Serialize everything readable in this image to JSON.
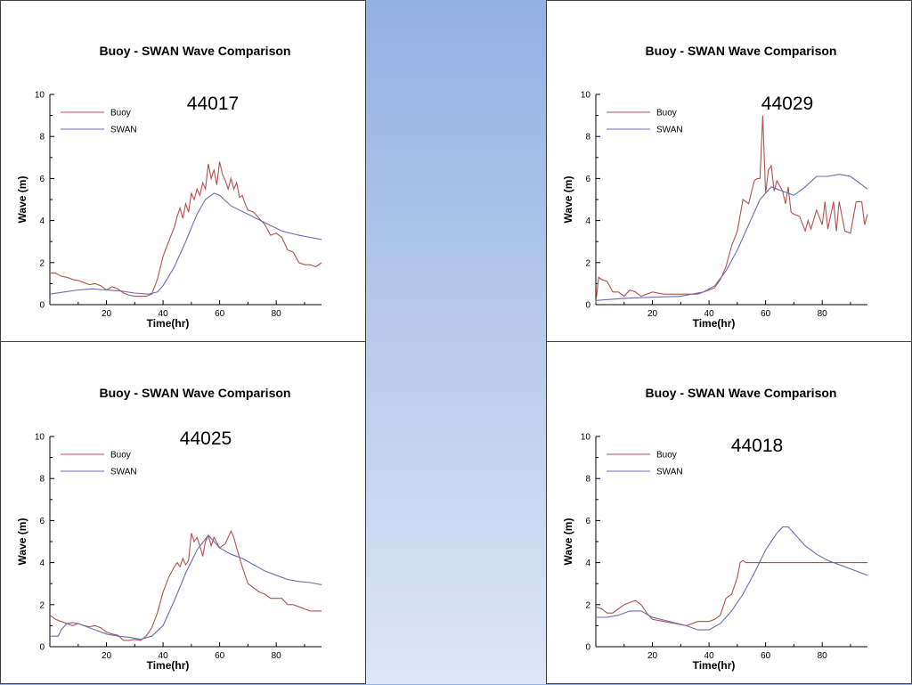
{
  "colors": {
    "buoy": "#b5514d",
    "swan": "#6b6bb5"
  },
  "chart_data": [
    {
      "type": "line",
      "title": "Buoy - SWAN Wave Comparison",
      "station": "44017",
      "xlabel": "Time(hr)",
      "ylabel": "Wave (m)",
      "xlim": [
        0,
        96
      ],
      "ylim": [
        0,
        10
      ],
      "xticks": [
        20,
        40,
        60,
        80
      ],
      "yticks": [
        0,
        2,
        4,
        6,
        8,
        10
      ],
      "legend_position": "top-left",
      "series": [
        {
          "name": "Buoy",
          "color": "#b5514d",
          "x": [
            0,
            2,
            4,
            6,
            8,
            10,
            12,
            14,
            16,
            18,
            20,
            22,
            24,
            26,
            28,
            30,
            32,
            34,
            36,
            38,
            40,
            42,
            44,
            45,
            46,
            47,
            48,
            49,
            50,
            51,
            52,
            53,
            54,
            55,
            56,
            57,
            58,
            59,
            60,
            61,
            62,
            63,
            64,
            65,
            66,
            67,
            68,
            69,
            70,
            72,
            74,
            76,
            78,
            80,
            82,
            84,
            86,
            88,
            90,
            92,
            94,
            96
          ],
          "y": [
            1.5,
            1.5,
            1.35,
            1.3,
            1.2,
            1.15,
            1.05,
            0.95,
            1.0,
            0.9,
            0.7,
            0.85,
            0.75,
            0.55,
            0.45,
            0.4,
            0.4,
            0.4,
            0.5,
            1.2,
            2.3,
            3.0,
            3.7,
            4.2,
            4.6,
            4.1,
            4.8,
            4.4,
            5.3,
            5.0,
            5.5,
            5.2,
            5.8,
            5.5,
            6.7,
            6.0,
            6.4,
            5.7,
            6.8,
            6.2,
            5.9,
            5.5,
            6.0,
            5.5,
            5.8,
            5.1,
            5.2,
            4.8,
            4.5,
            4.4,
            4.1,
            3.8,
            3.3,
            3.4,
            3.2,
            2.6,
            2.5,
            2.0,
            1.9,
            1.9,
            1.8,
            2.0
          ]
        },
        {
          "name": "SWAN",
          "color": "#6b6bb5",
          "x": [
            0,
            5,
            10,
            15,
            20,
            25,
            30,
            35,
            38,
            40,
            44,
            48,
            52,
            55,
            58,
            60,
            64,
            70,
            76,
            82,
            88,
            92,
            96
          ],
          "y": [
            0.5,
            0.6,
            0.7,
            0.75,
            0.7,
            0.65,
            0.55,
            0.5,
            0.6,
            0.9,
            1.8,
            3.0,
            4.3,
            5.0,
            5.3,
            5.2,
            4.7,
            4.3,
            3.9,
            3.5,
            3.3,
            3.2,
            3.1
          ]
        }
      ]
    },
    {
      "type": "line",
      "title": "Buoy - SWAN Wave Comparison",
      "station": "44029",
      "xlabel": "Time(hr)",
      "ylabel": "Wave (m)",
      "xlim": [
        0,
        96
      ],
      "ylim": [
        0,
        10
      ],
      "xticks": [
        20,
        40,
        60,
        80
      ],
      "yticks": [
        0,
        2,
        4,
        6,
        8,
        10
      ],
      "legend_position": "top-left",
      "series": [
        {
          "name": "Buoy",
          "color": "#b5514d",
          "x": [
            0,
            1,
            2,
            4,
            6,
            8,
            10,
            12,
            14,
            16,
            18,
            20,
            24,
            28,
            32,
            36,
            40,
            42,
            44,
            46,
            48,
            50,
            52,
            54,
            56,
            57,
            58,
            59,
            60,
            61,
            62,
            63,
            64,
            66,
            67,
            68,
            69,
            70,
            72,
            74,
            75,
            76,
            78,
            80,
            81,
            82,
            84,
            85,
            86,
            88,
            90,
            92,
            94,
            95,
            96
          ],
          "y": [
            0.1,
            1.3,
            1.2,
            1.1,
            0.6,
            0.6,
            0.4,
            0.7,
            0.6,
            0.4,
            0.5,
            0.6,
            0.5,
            0.5,
            0.5,
            0.5,
            0.7,
            0.8,
            1.2,
            1.8,
            2.8,
            3.5,
            5.0,
            4.8,
            5.9,
            6.0,
            6.0,
            9.0,
            5.3,
            6.4,
            6.6,
            5.4,
            5.9,
            5.4,
            4.8,
            5.6,
            4.4,
            4.3,
            4.2,
            3.5,
            4.0,
            3.6,
            4.5,
            3.8,
            4.9,
            3.6,
            4.9,
            3.5,
            4.9,
            3.5,
            3.4,
            4.9,
            4.9,
            3.8,
            4.3
          ]
        },
        {
          "name": "SWAN",
          "color": "#6b6bb5",
          "x": [
            0,
            10,
            20,
            30,
            38,
            42,
            46,
            50,
            54,
            58,
            62,
            66,
            70,
            74,
            78,
            82,
            86,
            90,
            93,
            96
          ],
          "y": [
            0.2,
            0.3,
            0.35,
            0.4,
            0.6,
            0.9,
            1.6,
            2.6,
            3.8,
            5.0,
            5.6,
            5.4,
            5.2,
            5.6,
            6.1,
            6.1,
            6.2,
            6.1,
            5.8,
            5.5
          ]
        }
      ]
    },
    {
      "type": "line",
      "title": "Buoy - SWAN Wave Comparison",
      "station": "44025",
      "xlabel": "Time(hr)",
      "ylabel": "Wave (m)",
      "xlim": [
        0,
        96
      ],
      "ylim": [
        0,
        10
      ],
      "xticks": [
        20,
        40,
        60,
        80
      ],
      "yticks": [
        0,
        2,
        4,
        6,
        8,
        10
      ],
      "legend_position": "top-left",
      "series": [
        {
          "name": "Buoy",
          "color": "#b5514d",
          "x": [
            0,
            2,
            4,
            6,
            8,
            10,
            12,
            14,
            16,
            18,
            20,
            22,
            24,
            26,
            28,
            30,
            32,
            34,
            36,
            38,
            40,
            42,
            44,
            45,
            46,
            47,
            48,
            49,
            50,
            51,
            52,
            53,
            54,
            55,
            56,
            57,
            58,
            60,
            62,
            64,
            65,
            66,
            68,
            70,
            72,
            74,
            76,
            78,
            80,
            82,
            84,
            86,
            88,
            90,
            92,
            94,
            96
          ],
          "y": [
            1.5,
            1.3,
            1.2,
            1.1,
            1.0,
            1.1,
            1.0,
            0.95,
            1.0,
            0.9,
            0.7,
            0.6,
            0.55,
            0.3,
            0.3,
            0.35,
            0.3,
            0.5,
            0.9,
            1.6,
            2.6,
            3.3,
            3.8,
            4.0,
            3.8,
            4.2,
            3.9,
            4.1,
            5.4,
            5.0,
            5.2,
            4.8,
            4.3,
            5.0,
            5.3,
            4.8,
            5.2,
            4.7,
            4.9,
            5.5,
            5.2,
            4.7,
            3.8,
            3.0,
            2.8,
            2.6,
            2.5,
            2.3,
            2.3,
            2.3,
            2.0,
            2.0,
            1.9,
            1.8,
            1.7,
            1.7,
            1.7
          ]
        },
        {
          "name": "SWAN",
          "color": "#6b6bb5",
          "x": [
            0,
            3,
            4,
            6,
            8,
            10,
            12,
            16,
            20,
            24,
            28,
            32,
            36,
            40,
            44,
            48,
            52,
            56,
            60,
            64,
            68,
            72,
            76,
            80,
            84,
            88,
            92,
            96
          ],
          "y": [
            0.5,
            0.5,
            0.8,
            1.1,
            1.15,
            1.1,
            1.0,
            0.8,
            0.6,
            0.5,
            0.45,
            0.35,
            0.5,
            1.0,
            2.2,
            3.5,
            4.6,
            5.3,
            4.7,
            4.4,
            4.2,
            3.9,
            3.6,
            3.4,
            3.2,
            3.1,
            3.05,
            2.95
          ]
        }
      ]
    },
    {
      "type": "line",
      "title": "Buoy - SWAN Wave Comparison",
      "station": "44018",
      "xlabel": "Time(hr)",
      "ylabel": "Wave (m)",
      "xlim": [
        0,
        96
      ],
      "ylim": [
        0,
        10
      ],
      "xticks": [
        20,
        40,
        60,
        80
      ],
      "yticks": [
        0,
        2,
        4,
        6,
        8,
        10
      ],
      "legend_position": "top-left",
      "series": [
        {
          "name": "Buoy",
          "color": "#b5514d",
          "x": [
            0,
            2,
            4,
            6,
            8,
            10,
            12,
            14,
            16,
            18,
            20,
            24,
            28,
            32,
            36,
            40,
            42,
            44,
            46,
            48,
            50,
            51,
            52,
            53,
            56,
            60,
            70,
            80,
            90,
            96
          ],
          "y": [
            1.9,
            1.8,
            1.6,
            1.6,
            1.8,
            2.0,
            2.1,
            2.2,
            2.0,
            1.6,
            1.3,
            1.2,
            1.1,
            1.0,
            1.2,
            1.2,
            1.3,
            1.5,
            2.3,
            2.5,
            3.3,
            4.0,
            4.1,
            4.0,
            4.0,
            4.0,
            4.0,
            4.0,
            4.0,
            4.0
          ]
        },
        {
          "name": "SWAN",
          "color": "#6b6bb5",
          "x": [
            0,
            4,
            8,
            12,
            16,
            20,
            26,
            32,
            36,
            40,
            44,
            48,
            52,
            56,
            60,
            64,
            66,
            68,
            70,
            74,
            78,
            82,
            88,
            92,
            96
          ],
          "y": [
            1.4,
            1.4,
            1.5,
            1.7,
            1.7,
            1.4,
            1.2,
            1.0,
            0.8,
            0.8,
            1.1,
            1.7,
            2.5,
            3.5,
            4.6,
            5.4,
            5.7,
            5.7,
            5.4,
            4.8,
            4.4,
            4.1,
            3.8,
            3.6,
            3.4
          ]
        }
      ]
    }
  ]
}
